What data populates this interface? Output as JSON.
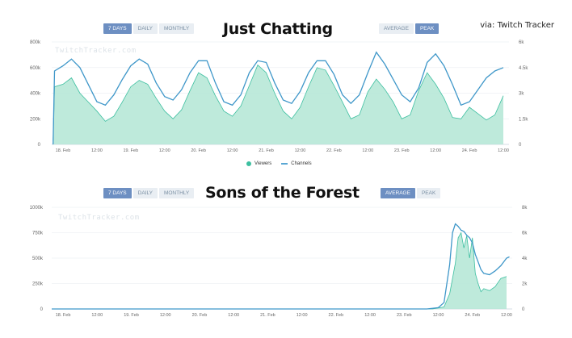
{
  "attribution": "via: Twitch Tracker",
  "colors": {
    "viewers_fill": "#b7e8d7",
    "viewers_line": "#3dbfa0",
    "channels_line": "#3f97c9",
    "tab_active": "#6d8fc2",
    "tab_inactive": "#e9eef3"
  },
  "legend": {
    "viewers": "Viewers",
    "channels": "Channels"
  },
  "chart_data": [
    {
      "type": "area",
      "title": "Just Chatting",
      "watermark": "TwitchTracker.com",
      "range_tabs": [
        {
          "label": "7 DAYS",
          "active": true
        },
        {
          "label": "DAILY",
          "active": false
        },
        {
          "label": "MONTHLY",
          "active": false
        }
      ],
      "mode_tabs": [
        {
          "label": "AVERAGE",
          "active": false
        },
        {
          "label": "PEAK",
          "active": true
        }
      ],
      "x_ticks": [
        "18. Feb",
        "12:00",
        "19. Feb",
        "12:00",
        "20. Feb",
        "12:00",
        "21. Feb",
        "12:00",
        "22. Feb",
        "12:00",
        "23. Feb",
        "12:00",
        "24. Feb",
        "12:00"
      ],
      "x_range_hours": [
        -4,
        158
      ],
      "y_left": {
        "label": "Viewers",
        "ticks": [
          "0",
          "200k",
          "400k",
          "600k",
          "800k"
        ],
        "range": [
          0,
          800000
        ]
      },
      "y_right": {
        "label": "Channels",
        "ticks": [
          "0",
          "1.5k",
          "3k",
          "4.5k",
          "6k"
        ],
        "range": [
          0,
          6000
        ]
      },
      "series": [
        {
          "name": "Viewers",
          "style": "area",
          "hours": [
            -3.5,
            -3,
            0,
            3,
            6,
            9,
            12,
            15,
            18,
            21,
            24,
            27,
            30,
            33,
            36,
            39,
            42,
            45,
            48,
            51,
            54,
            57,
            60,
            63,
            66,
            69,
            72,
            75,
            78,
            81,
            84,
            87,
            90,
            93,
            96,
            99,
            102,
            105,
            108,
            111,
            114,
            117,
            120,
            123,
            126,
            129,
            132,
            135,
            138,
            141,
            144,
            147,
            150,
            153,
            156
          ],
          "values": [
            30000,
            450000,
            470000,
            520000,
            400000,
            330000,
            260000,
            180000,
            220000,
            330000,
            450000,
            500000,
            470000,
            360000,
            260000,
            200000,
            270000,
            420000,
            560000,
            520000,
            380000,
            260000,
            220000,
            300000,
            460000,
            620000,
            560000,
            400000,
            260000,
            200000,
            290000,
            450000,
            600000,
            580000,
            460000,
            330000,
            200000,
            230000,
            410000,
            510000,
            430000,
            330000,
            200000,
            230000,
            420000,
            560000,
            470000,
            360000,
            210000,
            200000,
            290000,
            240000,
            190000,
            230000,
            380000
          ]
        },
        {
          "name": "Channels",
          "style": "line",
          "hours": [
            -3.5,
            -3,
            0,
            3,
            6,
            9,
            12,
            15,
            18,
            21,
            24,
            27,
            30,
            33,
            36,
            39,
            42,
            45,
            48,
            51,
            54,
            57,
            60,
            63,
            66,
            69,
            72,
            75,
            78,
            81,
            84,
            87,
            90,
            93,
            96,
            99,
            102,
            105,
            108,
            111,
            114,
            117,
            120,
            123,
            126,
            129,
            132,
            135,
            138,
            141,
            144,
            147,
            150,
            153,
            156
          ],
          "values": [
            0,
            4300,
            4600,
            5000,
            4500,
            3500,
            2500,
            2300,
            2900,
            3800,
            4600,
            5000,
            4700,
            3600,
            2800,
            2600,
            3200,
            4200,
            4900,
            4900,
            3600,
            2500,
            2300,
            2900,
            4200,
            4900,
            4800,
            3600,
            2600,
            2400,
            3100,
            4200,
            4900,
            4900,
            4100,
            2900,
            2400,
            2900,
            4200,
            5400,
            4700,
            3800,
            2900,
            2500,
            3300,
            4800,
            5300,
            4600,
            3500,
            2300,
            2500,
            3200,
            3900,
            4300,
            4500
          ]
        }
      ]
    },
    {
      "type": "area",
      "title": "Sons of the Forest",
      "watermark": "TwitchTracker.com",
      "range_tabs": [
        {
          "label": "7 DAYS",
          "active": true
        },
        {
          "label": "DAILY",
          "active": false
        },
        {
          "label": "MONTHLY",
          "active": false
        }
      ],
      "mode_tabs": [
        {
          "label": "AVERAGE",
          "active": true
        },
        {
          "label": "PEAK",
          "active": false
        }
      ],
      "x_ticks": [
        "18. Feb",
        "12:00",
        "19. Feb",
        "12:00",
        "20. Feb",
        "12:00",
        "21. Feb",
        "12:00",
        "22. Feb",
        "12:00",
        "23. Feb",
        "12:00",
        "24. Feb",
        "12:00"
      ],
      "x_range_hours": [
        -4,
        158
      ],
      "y_left": {
        "label": "Viewers",
        "ticks": [
          "0",
          "250k",
          "500k",
          "750k",
          "1000k"
        ],
        "range": [
          0,
          1000000
        ]
      },
      "y_right": {
        "label": "Channels",
        "ticks": [
          "0",
          "2k",
          "4k",
          "6k",
          "8k"
        ],
        "range": [
          0,
          8000
        ]
      },
      "series": [
        {
          "name": "Viewers",
          "style": "area",
          "hours": [
            -4,
            130,
            134,
            136,
            138,
            139,
            140,
            141,
            142,
            143,
            144,
            145,
            146,
            147,
            148,
            150,
            152,
            154,
            156
          ],
          "values": [
            0,
            0,
            20000,
            150000,
            450000,
            700000,
            750000,
            600000,
            720000,
            500000,
            700000,
            350000,
            250000,
            170000,
            200000,
            180000,
            220000,
            300000,
            320000
          ]
        },
        {
          "name": "Channels",
          "style": "line",
          "hours": [
            -4,
            128,
            132,
            134,
            136,
            137,
            138,
            139,
            140,
            141,
            142,
            143,
            144,
            145,
            146,
            147,
            148,
            150,
            152,
            154,
            156,
            157
          ],
          "values": [
            0,
            0,
            100,
            500,
            3500,
            6000,
            6700,
            6500,
            6200,
            6100,
            5800,
            5600,
            5200,
            4300,
            3700,
            3100,
            2800,
            2700,
            3000,
            3400,
            4000,
            4100
          ]
        }
      ]
    }
  ]
}
